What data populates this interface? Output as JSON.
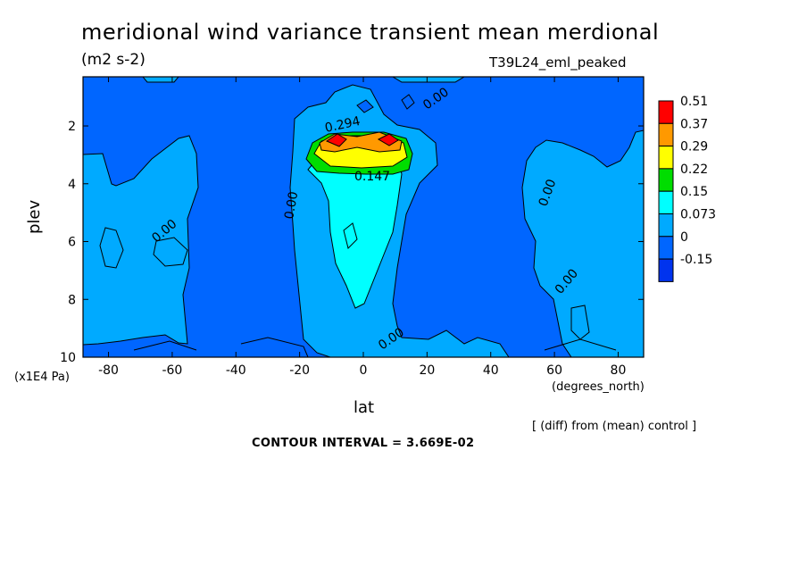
{
  "chart_data": {
    "type": "heatmap",
    "title": "meridional wind variance transient mean merdional",
    "units": "(m2 s-2)",
    "run_label": "T39L24_eml_peaked",
    "xlabel": "lat",
    "xunits": "(degrees_north)",
    "ylabel": "plev",
    "yunits": "(x1E4 Pa)",
    "xlim": [
      -88,
      88
    ],
    "ylim": [
      0.3,
      10
    ],
    "y_inverted": true,
    "x_ticks": [
      -80,
      -60,
      -40,
      -20,
      0,
      20,
      40,
      60,
      80
    ],
    "y_ticks": [
      2,
      4,
      6,
      8,
      10
    ],
    "grid": false,
    "legend_placement": "right",
    "colorbar": {
      "labels": [
        "0.51",
        "0.37",
        "0.29",
        "0.22",
        "0.15",
        "0.073",
        "0",
        "-0.15"
      ],
      "colors": [
        "#ff0000",
        "#ff9900",
        "#ffff00",
        "#00dd00",
        "#00ffff",
        "#00aaff",
        "#0066ff",
        "#0033ee"
      ]
    },
    "contour_labels": [
      "0.00",
      "0.00",
      "0.00",
      "0.00",
      "0.00",
      "0.00",
      "0.147",
      "0.294"
    ],
    "note": "[ (diff) from (mean) control ]",
    "contour_interval": "CONTOUR INTERVAL = 3.669E-02"
  }
}
